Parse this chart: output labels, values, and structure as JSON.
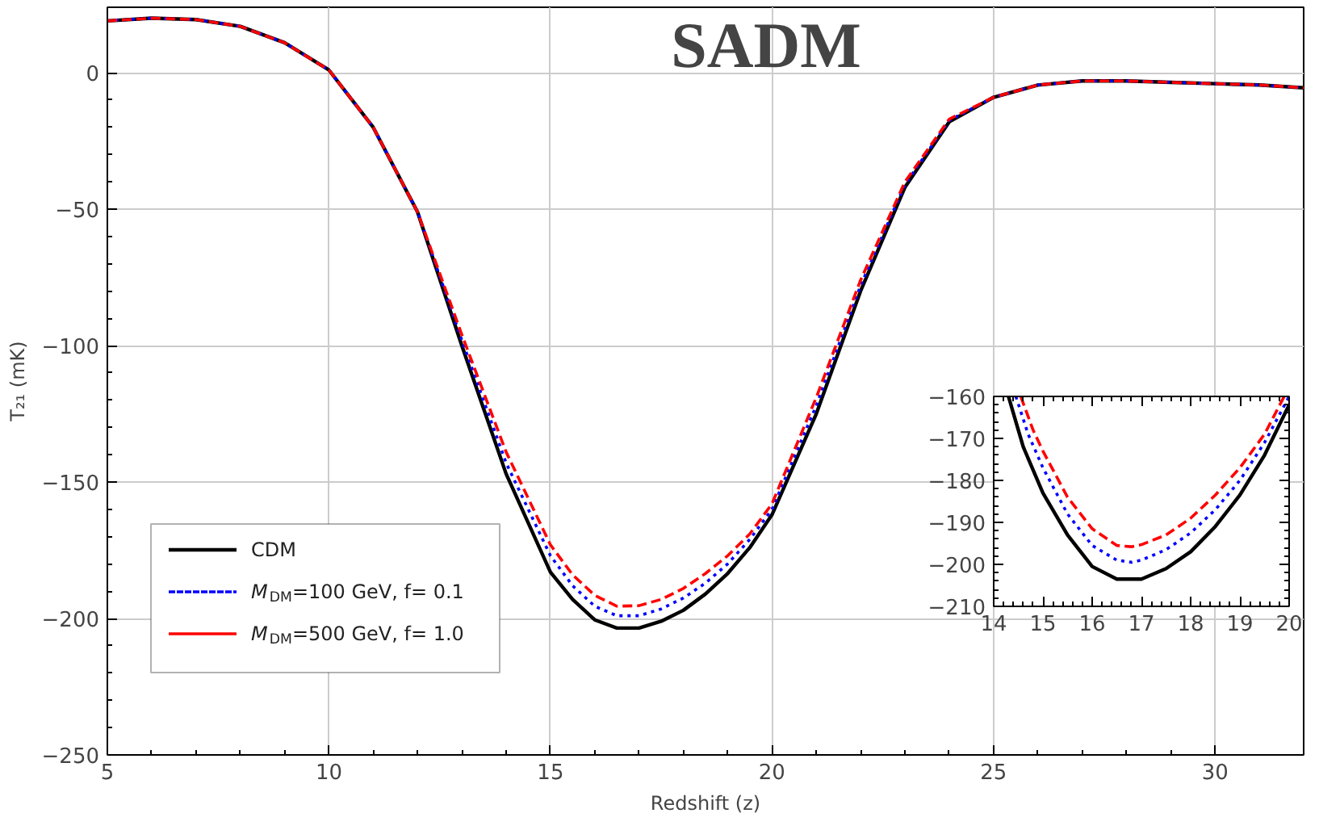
{
  "chart_data": [
    {
      "type": "line",
      "title": "SADM",
      "xlabel": "Redshift (z)",
      "ylabel": "T₂₁ (mK)",
      "x": [
        5,
        6,
        7,
        8,
        9,
        10,
        11,
        12,
        13,
        14,
        15,
        15.5,
        16,
        16.5,
        17,
        17.5,
        18,
        18.5,
        19,
        19.5,
        20,
        21,
        22,
        23,
        24,
        25,
        26,
        27,
        28,
        29,
        30,
        31,
        32
      ],
      "series": [
        {
          "name": "CDM",
          "color": "#000000",
          "line_style": "solid",
          "values": [
            19,
            20,
            19.5,
            17,
            11,
            1,
            -20,
            -51,
            -100,
            -147,
            -183,
            -193,
            -200.5,
            -203.5,
            -203.5,
            -201,
            -197,
            -191,
            -183.5,
            -174,
            -162,
            -125,
            -80,
            -42,
            -18,
            -9,
            -4.5,
            -3,
            -3,
            -3.5,
            -4,
            -4.5,
            -5.5
          ]
        },
        {
          "name": "M$_{DM}$=100 GeV, f= 0.1",
          "color": "#0000ff",
          "line_style": "dotted",
          "values": [
            19,
            20,
            19.5,
            17,
            11,
            1,
            -20,
            -51,
            -98,
            -143,
            -177,
            -188,
            -195.5,
            -199,
            -199,
            -196.5,
            -192.5,
            -187,
            -180,
            -171,
            -160,
            -122,
            -78,
            -41,
            -17.5,
            -9,
            -4.5,
            -3,
            -3,
            -3.5,
            -4,
            -4.5,
            -5.5
          ]
        },
        {
          "name": "M$_{DM}$=500 GeV, f= 1.0",
          "color": "#ff0000",
          "line_style": "dashed",
          "values": [
            19,
            20,
            19.5,
            17,
            11,
            1,
            -20,
            -51,
            -96,
            -139,
            -173,
            -184,
            -191.5,
            -195.5,
            -195.3,
            -193,
            -189,
            -183.5,
            -177,
            -169,
            -158,
            -119,
            -76,
            -40,
            -17,
            -9,
            -4.5,
            -3,
            -3,
            -3.5,
            -4,
            -4.5,
            -5.5
          ]
        }
      ],
      "xlim": [
        5,
        32
      ],
      "ylim": [
        -250,
        24
      ],
      "xticks": [
        5,
        10,
        15,
        20,
        25,
        30
      ],
      "yticks": [
        -250,
        -200,
        -150,
        -100,
        -50,
        0
      ],
      "grid": true,
      "legend": "bottom left",
      "marker": "none"
    },
    {
      "type": "line",
      "series": [
        {
          "color": "#000000",
          "line_style": "solid",
          "x": [
            14.3,
            14.6,
            15,
            15.5,
            16,
            16.5,
            17,
            17.5,
            18,
            18.5,
            19,
            19.5,
            20
          ],
          "values": [
            -160,
            -172,
            -183,
            -193,
            -200.5,
            -203.5,
            -203.5,
            -201,
            -197,
            -191,
            -183.5,
            -174,
            -162
          ]
        },
        {
          "color": "#0000ff",
          "line_style": "dotted",
          "x": [
            14.45,
            14.7,
            15,
            15.5,
            16,
            16.5,
            16.8,
            17,
            17.5,
            18,
            18.5,
            19,
            19.5,
            20
          ],
          "values": [
            -160,
            -169,
            -177,
            -188,
            -195.5,
            -199,
            -199.5,
            -199,
            -196.5,
            -192.5,
            -187,
            -180,
            -171,
            -160
          ]
        },
        {
          "color": "#ff0000",
          "line_style": "dashed",
          "x": [
            14.55,
            14.8,
            15,
            15.5,
            16,
            16.5,
            16.8,
            17,
            17.5,
            18,
            18.5,
            19,
            19.5,
            19.9
          ],
          "values": [
            -160,
            -168,
            -173,
            -184,
            -191.5,
            -195.5,
            -195.8,
            -195.3,
            -193,
            -189,
            -183.5,
            -177,
            -169,
            -160
          ]
        }
      ],
      "xlim": [
        14,
        20
      ],
      "ylim": [
        -210,
        -160
      ],
      "xticks": [
        14,
        15,
        16,
        17,
        18,
        19,
        20
      ],
      "yticks": [
        -210,
        -200,
        -190,
        -180,
        -170,
        -160
      ],
      "grid": false,
      "legend": false,
      "marker": "none"
    }
  ]
}
